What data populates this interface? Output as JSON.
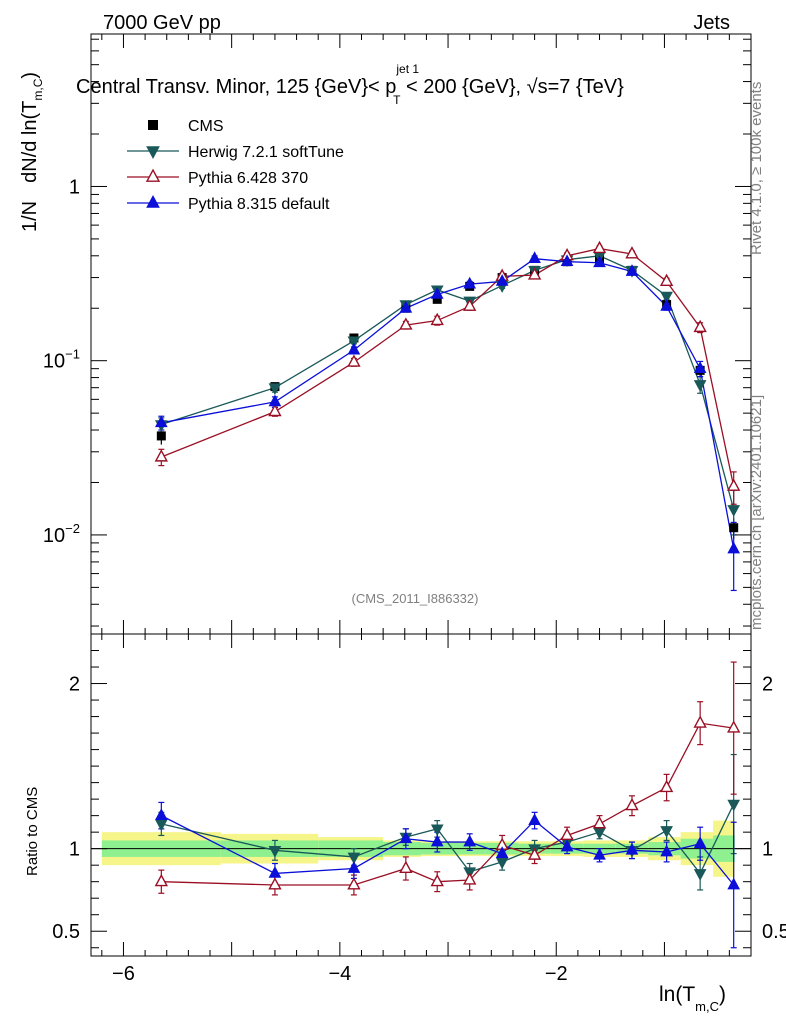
{
  "header": {
    "left": "7000 GeV pp",
    "right": "Jets",
    "title_pre": "Central Transv. Minor, 125 {GeV}< p",
    "title_sup": "jet 1",
    "title_sub": "T",
    "title_post": " < 200 {GeV}, √s=7 {TeV}"
  },
  "side_text": {
    "rivet": "Rivet 4.1.0, ≥ 100k events",
    "mcplots": "mcplots.cern.ch [arXiv:2401.10621]"
  },
  "watermark": "(CMS_2011_I886332)",
  "chart_data": {
    "type": "scatter",
    "x_label_main": "ln(T",
    "x_label_sub": "m,C",
    "x_label_close": ")",
    "y_label_prefix": "1/N",
    "y_label_main": "dN/d ln(T",
    "y_label_sub": "m,C",
    "y_label_close": ")",
    "ratio_ylabel": "Ratio to CMS",
    "xlim": [
      -6.3,
      -0.2
    ],
    "ylim_log": [
      0.0027,
      7.5
    ],
    "ratio_ylim": [
      0.35,
      2.3
    ],
    "x_ticks": [
      {
        "v": -6,
        "label": "−6"
      },
      {
        "v": -4,
        "label": "−4"
      },
      {
        "v": -2,
        "label": "−2"
      }
    ],
    "y_ticks": [
      {
        "v": 0.01,
        "base": "10",
        "exp": "−2"
      },
      {
        "v": 0.1,
        "base": "10",
        "exp": "−1"
      },
      {
        "v": 1,
        "base": "1",
        "exp": ""
      }
    ],
    "ratio_ticks": [
      {
        "v": 0.5,
        "label": "0.5"
      },
      {
        "v": 1,
        "label": "1"
      },
      {
        "v": 2,
        "label": "2"
      }
    ],
    "bin_edges": [
      -6.2,
      -5.1,
      -4.2,
      -3.6,
      -3.25,
      -2.95,
      -2.65,
      -2.35,
      -2.05,
      -1.75,
      -1.45,
      -1.15,
      -0.85,
      -0.55,
      -0.35
    ],
    "x": [
      -5.65,
      -4.6,
      -3.87,
      -3.39,
      -3.1,
      -2.8,
      -2.5,
      -2.2,
      -1.9,
      -1.6,
      -1.3,
      -0.98,
      -0.67,
      -0.36
    ],
    "series": [
      {
        "name": "CMS",
        "color": "#000000",
        "marker": "square",
        "values": [
          0.037,
          0.071,
          0.135,
          0.2,
          0.225,
          0.267,
          0.3,
          0.33,
          0.37,
          0.385,
          0.33,
          0.21,
          0.088,
          0.011
        ],
        "err_lo": [
          0.004,
          0.004,
          0.006,
          0.008,
          0.01,
          0.011,
          0.012,
          0.013,
          0.014,
          0.015,
          0.014,
          0.01,
          0.006,
          0.0015
        ],
        "err_hi": [
          0.004,
          0.004,
          0.006,
          0.008,
          0.01,
          0.011,
          0.012,
          0.013,
          0.014,
          0.015,
          0.014,
          0.01,
          0.006,
          0.0015
        ],
        "ratio": [],
        "ratio_lo": [],
        "ratio_hi": []
      },
      {
        "name": "Herwig 7.2.1 softTune",
        "color": "#1a5959",
        "marker": "triangle-down",
        "open": false,
        "values": [
          0.043,
          0.07,
          0.13,
          0.21,
          0.255,
          0.22,
          0.27,
          0.33,
          0.38,
          0.4,
          0.33,
          0.235,
          0.073,
          0.014
        ],
        "err_lo": [
          0.004,
          0.004,
          0.005,
          0.008,
          0.01,
          0.009,
          0.01,
          0.012,
          0.014,
          0.015,
          0.013,
          0.01,
          0.008,
          0.004
        ],
        "err_hi": [
          0.004,
          0.004,
          0.005,
          0.008,
          0.01,
          0.009,
          0.01,
          0.012,
          0.014,
          0.015,
          0.013,
          0.01,
          0.008,
          0.004
        ],
        "ratio": [
          1.15,
          0.99,
          0.95,
          1.07,
          1.12,
          0.86,
          0.92,
          1.0,
          1.04,
          1.1,
          0.99,
          1.11,
          0.85,
          1.27
        ],
        "ratio_lo": [
          0.07,
          0.06,
          0.05,
          0.05,
          0.05,
          0.05,
          0.05,
          0.05,
          0.04,
          0.04,
          0.05,
          0.06,
          0.1,
          0.3
        ],
        "ratio_hi": [
          0.07,
          0.06,
          0.05,
          0.05,
          0.05,
          0.05,
          0.05,
          0.05,
          0.04,
          0.04,
          0.05,
          0.06,
          0.1,
          0.3
        ]
      },
      {
        "name": "Pythia 6.428 370",
        "color": "#9a0f24",
        "marker": "triangle-up",
        "open": true,
        "values": [
          0.028,
          0.051,
          0.098,
          0.16,
          0.17,
          0.205,
          0.305,
          0.31,
          0.4,
          0.44,
          0.41,
          0.285,
          0.155,
          0.019
        ],
        "err_lo": [
          0.003,
          0.003,
          0.005,
          0.008,
          0.01,
          0.01,
          0.012,
          0.012,
          0.015,
          0.015,
          0.015,
          0.012,
          0.01,
          0.004
        ],
        "err_hi": [
          0.003,
          0.003,
          0.005,
          0.008,
          0.01,
          0.01,
          0.012,
          0.012,
          0.015,
          0.015,
          0.015,
          0.012,
          0.01,
          0.004
        ],
        "ratio": [
          0.8,
          0.78,
          0.78,
          0.88,
          0.8,
          0.81,
          1.02,
          0.96,
          1.08,
          1.15,
          1.26,
          1.37,
          1.76,
          1.73
        ],
        "ratio_lo": [
          0.07,
          0.06,
          0.06,
          0.07,
          0.06,
          0.06,
          0.06,
          0.05,
          0.05,
          0.05,
          0.06,
          0.08,
          0.13,
          0.4
        ],
        "ratio_hi": [
          0.07,
          0.06,
          0.06,
          0.07,
          0.06,
          0.06,
          0.06,
          0.05,
          0.05,
          0.05,
          0.06,
          0.08,
          0.13,
          0.4
        ]
      },
      {
        "name": "Pythia 8.315 default",
        "color": "#0b0fd8",
        "marker": "triangle-up",
        "open": false,
        "values": [
          0.044,
          0.058,
          0.115,
          0.2,
          0.24,
          0.275,
          0.285,
          0.385,
          0.37,
          0.365,
          0.325,
          0.205,
          0.09,
          0.0083
        ],
        "err_lo": [
          0.004,
          0.004,
          0.005,
          0.008,
          0.01,
          0.01,
          0.011,
          0.014,
          0.014,
          0.014,
          0.013,
          0.01,
          0.009,
          0.0035
        ],
        "err_hi": [
          0.004,
          0.004,
          0.005,
          0.008,
          0.01,
          0.01,
          0.011,
          0.014,
          0.014,
          0.014,
          0.013,
          0.01,
          0.009,
          0.0035
        ],
        "ratio": [
          1.2,
          0.85,
          0.88,
          1.06,
          1.04,
          1.04,
          0.97,
          1.17,
          1.01,
          0.96,
          0.99,
          0.98,
          1.03,
          0.78
        ],
        "ratio_lo": [
          0.08,
          0.06,
          0.06,
          0.06,
          0.06,
          0.05,
          0.05,
          0.05,
          0.04,
          0.04,
          0.05,
          0.06,
          0.1,
          0.38
        ],
        "ratio_hi": [
          0.08,
          0.06,
          0.06,
          0.06,
          0.06,
          0.05,
          0.05,
          0.05,
          0.04,
          0.04,
          0.05,
          0.06,
          0.1,
          0.38
        ]
      }
    ],
    "ratio_band_inner": [
      0.05,
      0.05,
      0.05,
      0.04,
      0.035,
      0.035,
      0.035,
      0.03,
      0.03,
      0.03,
      0.03,
      0.04,
      0.06,
      0.08
    ],
    "ratio_band_outer": [
      0.1,
      0.09,
      0.07,
      0.05,
      0.045,
      0.045,
      0.045,
      0.045,
      0.045,
      0.05,
      0.05,
      0.07,
      0.1,
      0.17
    ],
    "band_colors": {
      "inner": "#8ef08e",
      "outer": "#f5f58a"
    }
  }
}
